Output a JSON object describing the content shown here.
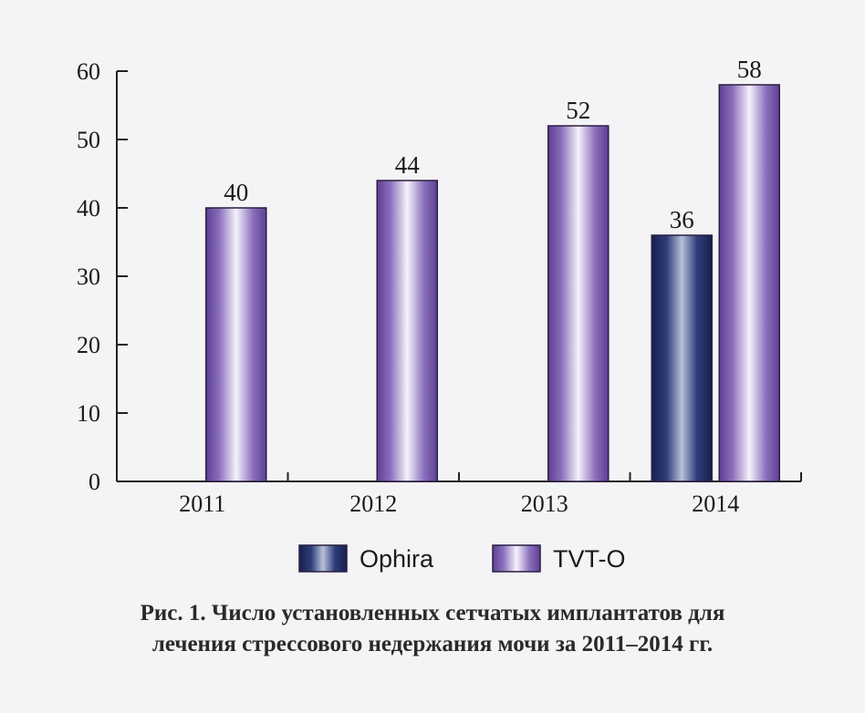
{
  "chart_data": {
    "type": "bar",
    "categories": [
      "2011",
      "2012",
      "2013",
      "2014"
    ],
    "series": [
      {
        "name": "Ophira",
        "values": [
          null,
          null,
          null,
          36
        ],
        "color": "#1f2d66"
      },
      {
        "name": "TVT-O",
        "values": [
          40,
          44,
          52,
          58
        ],
        "color": "#6a4c9e"
      }
    ],
    "data_labels": true,
    "ylim": [
      0,
      60
    ],
    "yticks": [
      0,
      10,
      20,
      30,
      40,
      50,
      60
    ],
    "grid": false,
    "legend": "bottom-center"
  },
  "caption": {
    "line1": "Рис. 1. Число установленных сетчатых имплантатов для",
    "line2": "лечения стрессового недержания мочи за 2011–2014 гг."
  }
}
